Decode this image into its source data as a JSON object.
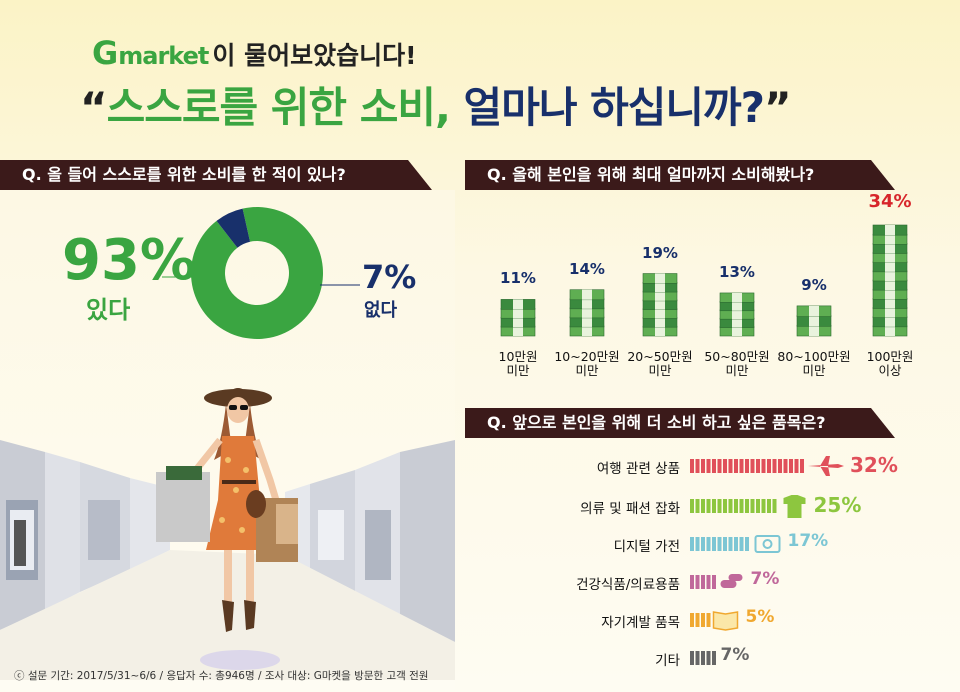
{
  "header": {
    "brand_g": "G",
    "brand_rest": "market",
    "brand_suffix": "이 물어보았습니다!",
    "headline_open": "“",
    "headline_green": "스스로를 위한 소비,",
    "headline_navy": " 얼마나 하십니까?",
    "headline_close": "”"
  },
  "colors": {
    "green": "#3aa541",
    "navy": "#18306b",
    "red": "#d7262b",
    "qbar": "#3b1a1a"
  },
  "q1": {
    "question": "Q. 올 들어 스스로를 위한 소비를 한 적이 있나?",
    "yes_pct": "93%",
    "yes_label": "있다",
    "no_pct": "7%",
    "no_label": "없다"
  },
  "q2": {
    "question": "Q. 올해 본인을 위해 최대 얼마까지 소비해봤나?"
  },
  "q3": {
    "question": "Q. 앞으로 본인을 위해 더 소비 하고 싶은 품목은?"
  },
  "footer": {
    "note": "ⓒ 설문 기간: 2017/5/31~6/6 / 응답자 수: 총946명 / 조사 대상: G마켓을 방문한 고객 전원"
  },
  "chart_data": [
    {
      "type": "pie",
      "title": "Q. 올 들어 스스로를 위한 소비를 한 적이 있나?",
      "categories": [
        "있다",
        "없다"
      ],
      "values": [
        93,
        7
      ],
      "colors": [
        "#3aa541",
        "#18306b"
      ]
    },
    {
      "type": "bar",
      "title": "Q. 올해 본인을 위해 최대 얼마까지 소비해봤나?",
      "categories": [
        [
          "10만원",
          "미만"
        ],
        [
          "10~20만원",
          "미만"
        ],
        [
          "20~50만원",
          "미만"
        ],
        [
          "50~80만원",
          "미만"
        ],
        [
          "80~100만원",
          "미만"
        ],
        [
          "100만원",
          "이상"
        ]
      ],
      "values": [
        11,
        14,
        19,
        13,
        9,
        34
      ],
      "labels": [
        "11%",
        "14%",
        "19%",
        "13%",
        "9%",
        "34%"
      ],
      "highlight_color": "#d7262b"
    },
    {
      "type": "bar",
      "orientation": "horizontal",
      "title": "Q. 앞으로 본인을 위해 더 소비 하고 싶은 품목은?",
      "categories": [
        "여행 관련 상품",
        "의류 및 패션 잡화",
        "디지털 가전",
        "건강식품/의료용품",
        "자기계발 품목",
        "기타"
      ],
      "values": [
        32,
        25,
        17,
        7,
        5,
        7
      ],
      "labels": [
        "32%",
        "25%",
        "17%",
        "7%",
        "5%",
        "7%"
      ],
      "icons": [
        "airplane-icon",
        "shirt-icon",
        "camera-icon",
        "pill-icon",
        "book-icon",
        ""
      ],
      "colors": [
        "#e0505a",
        "#8dc63f",
        "#7cc6d4",
        "#c0689a",
        "#f0a830",
        "#666666"
      ]
    }
  ]
}
